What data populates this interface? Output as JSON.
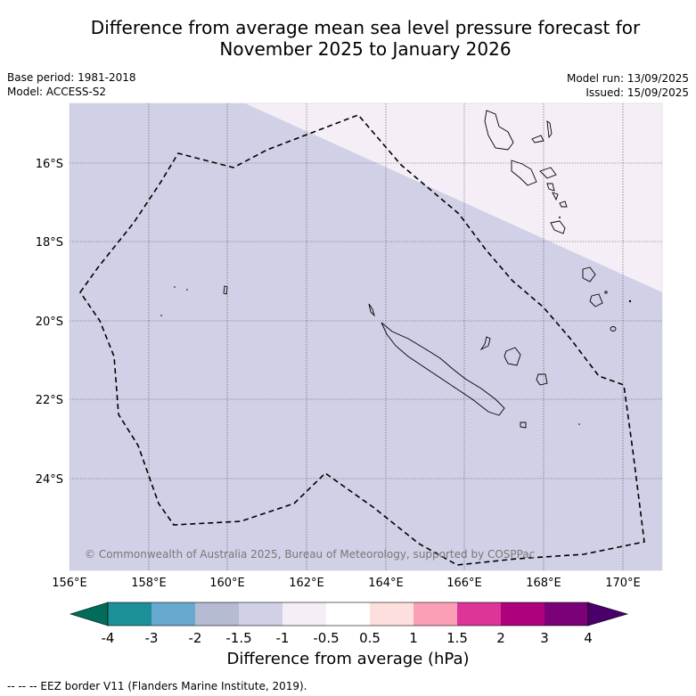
{
  "title_line1": "Difference from average mean sea level pressure forecast for",
  "title_line2": "November 2025 to January 2026",
  "meta": {
    "base_period": "Base period: 1981-2018",
    "model": "Model: ACCESS-S2",
    "model_run": "Model run: 13/09/2025",
    "issued": "Issued: 15/09/2025"
  },
  "map": {
    "lon_ticks": [
      "156°E",
      "158°E",
      "160°E",
      "162°E",
      "164°E",
      "166°E",
      "168°E",
      "170°E"
    ],
    "lat_ticks": [
      "16°S",
      "18°S",
      "20°S",
      "22°S",
      "24°S"
    ],
    "copyright": "© Commonwealth of Australia 2025, Bureau of Meteorology, supported by COSPPac",
    "colors": {
      "background_anomaly": "#d0d1e6",
      "upper_right_anomaly": "#f5eef6",
      "land_outline": "#000000",
      "eez": "#000000"
    }
  },
  "colorbar": {
    "ticks": [
      "-4",
      "-3",
      "-2",
      "-1.5",
      "-1",
      "-0.5",
      "0.5",
      "1",
      "1.5",
      "2",
      "3",
      "4"
    ],
    "colors": [
      "#016c59",
      "#1c9099",
      "#67a9cf",
      "#b4bbd2",
      "#d0d1e6",
      "#f5eef6",
      "#ffffff",
      "#fde0dd",
      "#fa9fb5",
      "#dd3497",
      "#ae017e",
      "#7a0177",
      "#49006a"
    ],
    "label": "Difference from average (hPa)"
  },
  "footer": "-- -- -- EEZ border V11 (Flanders Marine Institute, 2019)."
}
